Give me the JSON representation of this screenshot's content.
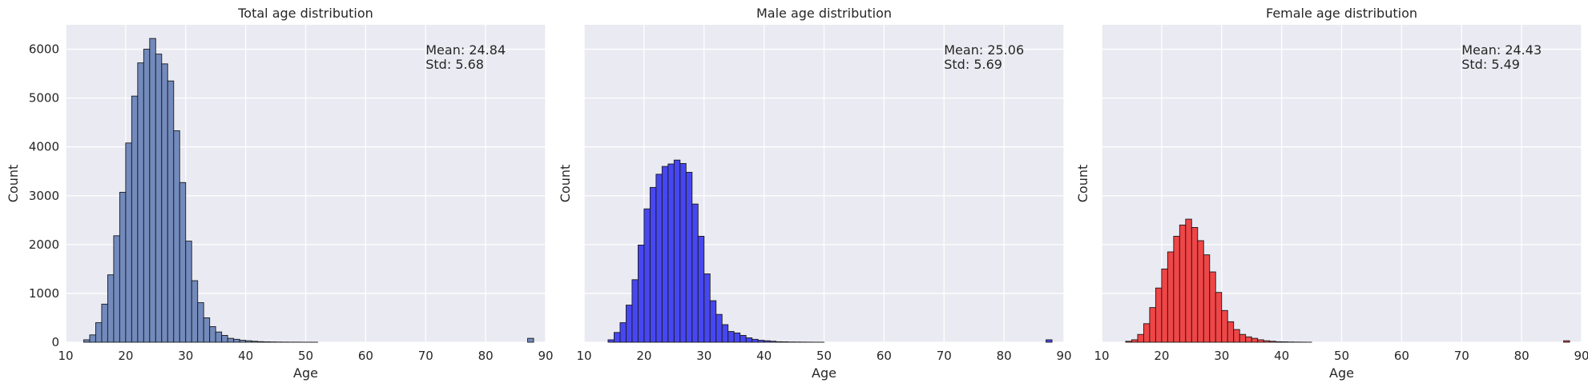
{
  "chart_data": [
    {
      "type": "bar",
      "title": "Total age distribution",
      "xlabel": "Age",
      "ylabel": "Count",
      "xlim": [
        10,
        90
      ],
      "ylim": [
        0,
        6500
      ],
      "xticks": [
        "10",
        "20",
        "30",
        "40",
        "50",
        "60",
        "70",
        "80",
        "90"
      ],
      "yticks": [
        "0",
        "1000",
        "2000",
        "3000",
        "4000",
        "5000",
        "6000"
      ],
      "grid": true,
      "bin_start": 12,
      "bin_width": 1,
      "bar_color": "#6b85b8",
      "values": [
        0,
        50,
        150,
        400,
        780,
        1380,
        2180,
        3070,
        4080,
        5040,
        5720,
        6000,
        6220,
        5900,
        5700,
        5350,
        4330,
        3270,
        2070,
        1260,
        810,
        500,
        320,
        210,
        140,
        80,
        60,
        40,
        30,
        20,
        12,
        8,
        6,
        4,
        3,
        2,
        2,
        1,
        1,
        1,
        0,
        0,
        0,
        0,
        0,
        0,
        0,
        0,
        0,
        0,
        0,
        0,
        0,
        0,
        0,
        0,
        0,
        0,
        0,
        0,
        0,
        0,
        0,
        0,
        0,
        0,
        0,
        0,
        0,
        0,
        0,
        0,
        0,
        0,
        0,
        80
      ],
      "annotations": [
        "Mean: 24.84",
        "Std: 5.68"
      ]
    },
    {
      "type": "bar",
      "title": "Male age distribution",
      "xlabel": "Age",
      "ylabel": "Count",
      "xlim": [
        10,
        90
      ],
      "ylim": [
        0,
        6500
      ],
      "xticks": [
        "10",
        "20",
        "30",
        "40",
        "50",
        "60",
        "70",
        "80",
        "90"
      ],
      "grid": true,
      "bin_start": 12,
      "bin_width": 1,
      "bar_color": "#3e3ef0",
      "values": [
        0,
        0,
        50,
        200,
        400,
        760,
        1280,
        1990,
        2730,
        3170,
        3440,
        3600,
        3650,
        3730,
        3660,
        3480,
        2830,
        2170,
        1400,
        850,
        570,
        360,
        220,
        190,
        140,
        90,
        60,
        40,
        30,
        20,
        10,
        8,
        5,
        4,
        3,
        2,
        1,
        1,
        0,
        0,
        0,
        0,
        0,
        0,
        0,
        0,
        0,
        0,
        0,
        0,
        0,
        0,
        0,
        0,
        0,
        0,
        0,
        0,
        0,
        0,
        0,
        0,
        0,
        0,
        0,
        0,
        0,
        0,
        0,
        0,
        0,
        0,
        0,
        0,
        0,
        50
      ],
      "annotations": [
        "Mean: 25.06",
        "Std: 5.69"
      ]
    },
    {
      "type": "bar",
      "title": "Female age distribution",
      "xlabel": "Age",
      "ylabel": "Count",
      "xlim": [
        10,
        90
      ],
      "ylim": [
        0,
        6500
      ],
      "xticks": [
        "10",
        "20",
        "30",
        "40",
        "50",
        "60",
        "70",
        "80",
        "90"
      ],
      "grid": true,
      "bin_start": 12,
      "bin_width": 1,
      "bar_color": "#f03c3c",
      "values": [
        0,
        0,
        20,
        50,
        160,
        380,
        710,
        1110,
        1500,
        1850,
        2170,
        2400,
        2520,
        2350,
        2080,
        1790,
        1440,
        1020,
        650,
        420,
        260,
        160,
        110,
        80,
        50,
        30,
        20,
        10,
        8,
        5,
        3,
        2,
        1,
        0,
        0,
        0,
        0,
        0,
        0,
        0,
        0,
        0,
        0,
        0,
        0,
        0,
        0,
        0,
        0,
        0,
        0,
        0,
        0,
        0,
        0,
        0,
        0,
        0,
        0,
        0,
        0,
        0,
        0,
        0,
        0,
        0,
        0,
        0,
        0,
        0,
        0,
        0,
        0,
        0,
        0,
        30
      ],
      "annotations": [
        "Mean: 24.43",
        "Std: 5.49"
      ]
    }
  ],
  "colors": {
    "plot_background": "#eaeaf2",
    "grid": "#ffffff",
    "bar_edge": "#1a1a1a",
    "text": "#262626"
  }
}
